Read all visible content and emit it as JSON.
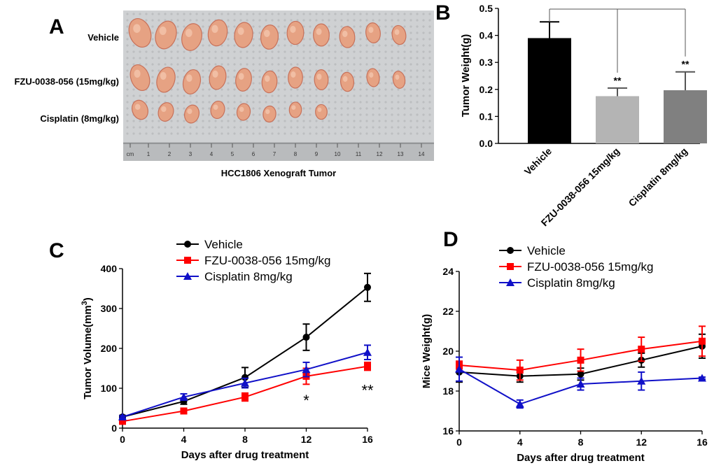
{
  "figure": {
    "panels": {
      "A": {
        "letter": "A",
        "caption": "HCC1806 Xenograft Tumor",
        "rows": [
          "Vehicle",
          "FZU-0038-056 (15mg/kg)",
          "Cisplatin (8mg/kg)"
        ],
        "tumor_counts": [
          11,
          11,
          8
        ],
        "ruler_labels": [
          "cm",
          "1",
          "2",
          "3",
          "4",
          "5",
          "6",
          "7",
          "8",
          "9",
          "10",
          "11",
          "12",
          "13",
          "14"
        ],
        "colors": {
          "mat": "#cfd1d3",
          "tumor": "#e6a283",
          "tumor_dark": "#c7715a"
        }
      },
      "B": {
        "letter": "B"
      },
      "C": {
        "letter": "C"
      },
      "D": {
        "letter": "D"
      }
    }
  },
  "chart_data": [
    {
      "id": "B",
      "type": "bar",
      "ylabel": "Tumor Weight(g)",
      "xlabel": "",
      "categories": [
        "Vehicle",
        "FZU-0038-056 15mg/kg",
        "Cisplatin 8mg/kg"
      ],
      "values": [
        0.39,
        0.175,
        0.197
      ],
      "errors": [
        0.06,
        0.03,
        0.068
      ],
      "colors": [
        "#000000",
        "#b4b4b4",
        "#808080"
      ],
      "significance": [
        "",
        "**",
        "**"
      ],
      "ylim": [
        0,
        0.5
      ],
      "yticks": [
        0.0,
        0.1,
        0.2,
        0.3,
        0.4,
        0.5
      ],
      "ytick_labels": [
        "0.0",
        "0.1",
        "0.2",
        "0.3",
        "0.4",
        "0.5"
      ]
    },
    {
      "id": "C",
      "type": "line",
      "xlabel": "Days after drug treatment",
      "ylabel": "Tumor Volume(mm3)",
      "ylabel_parts": [
        "Tumor Volume(mm",
        "3",
        ")"
      ],
      "x": [
        0,
        4,
        8,
        12,
        16
      ],
      "xlim": [
        0,
        16
      ],
      "xticks": [
        0,
        4,
        8,
        12,
        16
      ],
      "ylim": [
        0,
        400
      ],
      "yticks": [
        0,
        100,
        200,
        300,
        400
      ],
      "series": [
        {
          "name": "Vehicle",
          "marker": "circle",
          "color": "#000000",
          "values": [
            28,
            67,
            127,
            228,
            353
          ],
          "errors": [
            4,
            7,
            25,
            33,
            35
          ]
        },
        {
          "name": "FZU-0038-056 15mg/kg",
          "marker": "square",
          "color": "#ff0000",
          "values": [
            17,
            43,
            78,
            130,
            155
          ],
          "errors": [
            3,
            4,
            10,
            20,
            10
          ]
        },
        {
          "name": "Cisplatin 8mg/kg",
          "marker": "triangle",
          "color": "#1010c8",
          "values": [
            28,
            78,
            113,
            147,
            190
          ],
          "errors": [
            3,
            8,
            12,
            18,
            18
          ]
        }
      ],
      "annotations": [
        {
          "x": 12,
          "text": "*"
        },
        {
          "x": 16,
          "text": "**"
        }
      ]
    },
    {
      "id": "D",
      "type": "line",
      "xlabel": "Days after drug treatment",
      "ylabel": "Mice Weight(g)",
      "x": [
        0,
        4,
        8,
        12,
        16
      ],
      "xlim": [
        0,
        16
      ],
      "xticks": [
        0,
        4,
        8,
        12,
        16
      ],
      "ylim": [
        16,
        24
      ],
      "yticks": [
        16,
        18,
        20,
        22,
        24
      ],
      "series": [
        {
          "name": "Vehicle",
          "marker": "circle",
          "color": "#000000",
          "values": [
            18.95,
            18.75,
            18.85,
            19.55,
            20.25
          ],
          "errors": [
            0.5,
            0.3,
            0.3,
            0.35,
            0.6
          ]
        },
        {
          "name": "FZU-0038-056 15mg/kg",
          "marker": "square",
          "color": "#ff0000",
          "values": [
            19.3,
            19.05,
            19.55,
            20.1,
            20.5
          ],
          "errors": [
            0.2,
            0.5,
            0.55,
            0.6,
            0.75
          ]
        },
        {
          "name": "Cisplatin 8mg/kg",
          "marker": "triangle",
          "color": "#1010c8",
          "values": [
            19.1,
            17.35,
            18.35,
            18.5,
            18.65
          ],
          "errors": [
            0.6,
            0.2,
            0.3,
            0.45,
            0.05
          ]
        }
      ]
    }
  ]
}
